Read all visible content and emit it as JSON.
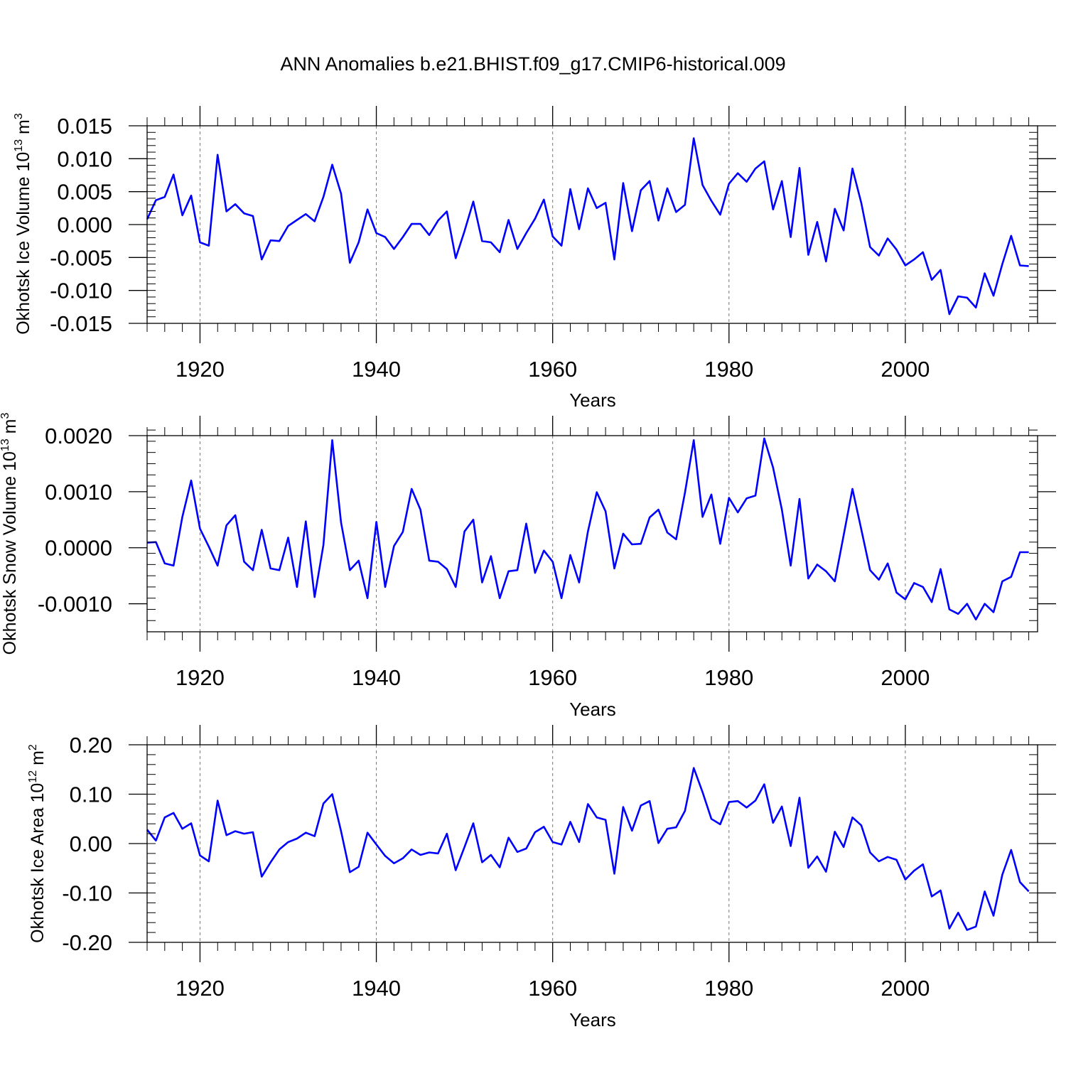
{
  "title": "ANN Anomalies b.e21.BHIST.f09_g17.CMIP6-historical.009",
  "colors": {
    "series": "#0000ff",
    "axis": "#000000",
    "gridline": "#777777",
    "background": "#ffffff"
  },
  "chart_data": [
    {
      "type": "line",
      "name": "ice-volume",
      "ylabel": "Okhotsk Ice Volume",
      "ylabel_unit_base": "10",
      "ylabel_unit_exp": "13",
      "ylabel_unit_rest": " m",
      "ylabel_unit_rest_exp": "3",
      "xlabel": "Years",
      "xlim": [
        1914,
        2015
      ],
      "ylim": [
        -0.015,
        0.015
      ],
      "yticks": [
        -0.015,
        -0.01,
        -0.005,
        0.0,
        0.005,
        0.01,
        0.015
      ],
      "ytick_labels": [
        "-0.015",
        "-0.010",
        "-0.005",
        "0.000",
        "0.005",
        "0.010",
        "0.015"
      ],
      "xticks": [
        1920,
        1940,
        1960,
        1980,
        2000
      ],
      "xtick_labels": [
        "1920",
        "1940",
        "1960",
        "1980",
        "2000"
      ],
      "series": [
        {
          "name": "Okhotsk Ice Volume anomaly",
          "x_start": 1914,
          "values": [
            0.0008,
            0.0037,
            0.0042,
            0.0076,
            0.0014,
            0.0044,
            -0.0027,
            -0.0032,
            0.0106,
            0.002,
            0.0031,
            0.0017,
            0.0013,
            -0.0053,
            -0.0024,
            -0.0025,
            -0.0002,
            0.0007,
            0.0016,
            0.0005,
            0.0042,
            0.0091,
            0.0047,
            -0.0058,
            -0.0027,
            0.0023,
            -0.0013,
            -0.0019,
            -0.0037,
            -0.0019,
            0.0001,
            0.0001,
            -0.0016,
            0.0006,
            0.002,
            -0.0051,
            -0.001,
            0.0035,
            -0.0025,
            -0.0027,
            -0.0042,
            0.0007,
            -0.0037,
            -0.0013,
            0.0009,
            0.0038,
            -0.0018,
            -0.0032,
            0.0054,
            -0.0007,
            0.0055,
            0.0025,
            0.0033,
            -0.0053,
            0.0063,
            -0.001,
            0.0052,
            0.0066,
            0.0006,
            0.0055,
            0.0019,
            0.003,
            0.0131,
            0.006,
            0.0036,
            0.0015,
            0.0062,
            0.0078,
            0.0065,
            0.0085,
            0.0096,
            0.0023,
            0.0066,
            -0.0019,
            0.0086,
            -0.0046,
            0.0004,
            -0.0056,
            0.0024,
            -0.0009,
            0.0085,
            0.0033,
            -0.0034,
            -0.0047,
            -0.0021,
            -0.0038,
            -0.0062,
            -0.0053,
            -0.0042,
            -0.0084,
            -0.0069,
            -0.0136,
            -0.0109,
            -0.0111,
            -0.0126,
            -0.0074,
            -0.0108,
            -0.006,
            -0.0017,
            -0.0062,
            -0.0063
          ]
        }
      ]
    },
    {
      "type": "line",
      "name": "snow-volume",
      "ylabel": "Okhotsk Snow Volume",
      "ylabel_unit_base": "10",
      "ylabel_unit_exp": "13",
      "ylabel_unit_rest": " m",
      "ylabel_unit_rest_exp": "3",
      "xlabel": "Years",
      "xlim": [
        1914,
        2015
      ],
      "ylim": [
        -0.0015,
        0.002
      ],
      "yticks": [
        -0.001,
        0.0,
        0.001,
        0.002
      ],
      "ytick_labels": [
        "-0.0010",
        "0.0000",
        "0.0010",
        "0.0020"
      ],
      "xticks": [
        1920,
        1940,
        1960,
        1980,
        2000
      ],
      "xtick_labels": [
        "1920",
        "1940",
        "1960",
        "1980",
        "2000"
      ],
      "series": [
        {
          "name": "Okhotsk Snow Volume anomaly",
          "x_start": 1914,
          "values": [
            9e-05,
            0.0001,
            -0.00028,
            -0.00032,
            0.00055,
            0.0012,
            0.00034,
            2e-05,
            -0.00032,
            0.0004,
            0.00058,
            -0.00025,
            -0.0004,
            0.00032,
            -0.00037,
            -0.0004,
            0.00018,
            -0.0007,
            0.00047,
            -0.00088,
            5e-05,
            0.00192,
            0.00045,
            -0.0004,
            -0.00023,
            -0.0009,
            0.00046,
            -0.0007,
            3e-05,
            0.00028,
            0.00105,
            0.00068,
            -0.00023,
            -0.00025,
            -0.00038,
            -0.0007,
            0.00029,
            0.0005,
            -0.00062,
            -0.00015,
            -0.0009,
            -0.00042,
            -0.0004,
            0.00043,
            -0.00045,
            -5e-05,
            -0.00025,
            -0.0009,
            -0.00013,
            -0.00062,
            0.00029,
            0.00099,
            0.00065,
            -0.00037,
            0.00025,
            6e-05,
            7e-05,
            0.00054,
            0.00068,
            0.00027,
            0.00015,
            0.00098,
            0.00192,
            0.00055,
            0.00095,
            7e-05,
            0.00089,
            0.00063,
            0.00088,
            0.00093,
            0.00195,
            0.00143,
            0.00068,
            -0.00032,
            0.00087,
            -0.00055,
            -0.0003,
            -0.00042,
            -0.0006,
            0.00022,
            0.00105,
            0.00033,
            -0.0004,
            -0.00057,
            -0.00028,
            -0.0008,
            -0.00092,
            -0.00063,
            -0.0007,
            -0.00097,
            -0.00038,
            -0.0011,
            -0.00118,
            -0.001,
            -0.00128,
            -0.001,
            -0.00115,
            -0.0006,
            -0.00052,
            -8e-05,
            -8e-05
          ]
        }
      ]
    },
    {
      "type": "line",
      "name": "ice-area",
      "ylabel": "Okhotsk Ice Area",
      "ylabel_unit_base": "10",
      "ylabel_unit_exp": "12",
      "ylabel_unit_rest": " m",
      "ylabel_unit_rest_exp": "2",
      "xlabel": "Years",
      "xlim": [
        1914,
        2015
      ],
      "ylim": [
        -0.2,
        0.2
      ],
      "yticks": [
        -0.2,
        -0.1,
        0.0,
        0.1,
        0.2
      ],
      "ytick_labels": [
        "-0.20",
        "-0.10",
        "0.00",
        "0.10",
        "0.20"
      ],
      "xticks": [
        1920,
        1940,
        1960,
        1980,
        2000
      ],
      "xtick_labels": [
        "1920",
        "1940",
        "1960",
        "1980",
        "2000"
      ],
      "series": [
        {
          "name": "Okhotsk Ice Area anomaly",
          "x_start": 1914,
          "values": [
            0.028,
            0.006,
            0.053,
            0.062,
            0.03,
            0.041,
            -0.024,
            -0.036,
            0.087,
            0.017,
            0.025,
            0.02,
            0.023,
            -0.067,
            -0.038,
            -0.012,
            0.003,
            0.01,
            0.022,
            0.015,
            0.081,
            0.1,
            0.025,
            -0.058,
            -0.047,
            0.022,
            -0.002,
            -0.025,
            -0.04,
            -0.03,
            -0.012,
            -0.023,
            -0.018,
            -0.02,
            0.02,
            -0.054,
            -0.007,
            0.041,
            -0.038,
            -0.023,
            -0.048,
            0.012,
            -0.017,
            -0.01,
            0.023,
            0.034,
            0.003,
            -0.002,
            0.044,
            0.003,
            0.08,
            0.053,
            0.048,
            -0.061,
            0.074,
            0.026,
            0.077,
            0.086,
            0.001,
            0.03,
            0.033,
            0.066,
            0.153,
            0.104,
            0.05,
            0.039,
            0.084,
            0.086,
            0.073,
            0.087,
            0.12,
            0.042,
            0.075,
            -0.005,
            0.093,
            -0.049,
            -0.026,
            -0.057,
            0.024,
            -0.007,
            0.053,
            0.037,
            -0.018,
            -0.036,
            -0.027,
            -0.033,
            -0.073,
            -0.055,
            -0.042,
            -0.107,
            -0.095,
            -0.172,
            -0.14,
            -0.175,
            -0.168,
            -0.097,
            -0.146,
            -0.063,
            -0.013,
            -0.078,
            -0.097
          ]
        }
      ]
    }
  ]
}
